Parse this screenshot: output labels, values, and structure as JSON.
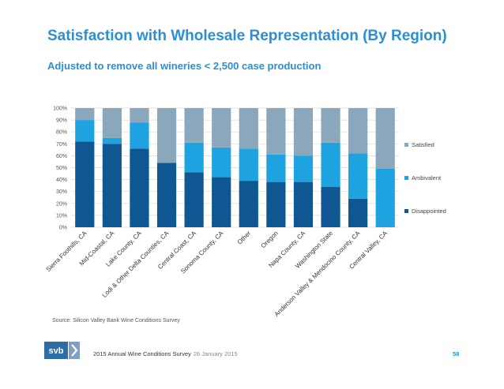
{
  "header": {
    "title": "Satisfaction with Wholesale Representation (By Region)",
    "subtitle": "Adjusted to remove all wineries < 2,500 case production"
  },
  "chart_data": {
    "type": "bar",
    "stacked": true,
    "categories": [
      "Sierra Foothills, CA",
      "Mid-Coastal, CA",
      "Lake County, CA",
      "Lodi & Other Delta Counties, CA",
      "Central Coast, CA",
      "Sonoma County, CA",
      "Other",
      "Oregon",
      "Napa County, CA",
      "Washington State",
      "Anderson Valley & Mendocino County, CA",
      "Central Valley, CA"
    ],
    "series": [
      {
        "name": "Disappointed",
        "color": "#0f5792",
        "values": [
          72,
          70,
          66,
          54,
          46,
          42,
          39,
          38,
          38,
          34,
          24,
          0
        ]
      },
      {
        "name": "Ambivalent",
        "color": "#1fa3e0",
        "values": [
          18,
          5,
          22,
          0,
          25,
          25,
          27,
          23,
          22,
          37,
          38,
          49
        ]
      },
      {
        "name": "Satisfied",
        "color": "#8aa7bc",
        "values": [
          10,
          25,
          12,
          46,
          29,
          33,
          34,
          39,
          40,
          29,
          38,
          51
        ]
      }
    ],
    "ylim": [
      0,
      100
    ],
    "yticks": [
      "0%",
      "10%",
      "20%",
      "30%",
      "40%",
      "50%",
      "60%",
      "70%",
      "80%",
      "90%",
      "100%"
    ],
    "legend": "right",
    "legend_entries": [
      "Satisfied",
      "Ambivalent",
      "Disappointed"
    ],
    "grid": true
  },
  "source_note": "Source: Silicon Valley Bank Wine Conditions Survey",
  "footer": {
    "logo_text": "svb",
    "survey": "2015 Annual Wine Conditions Survey",
    "date": "26 January 2015",
    "page": "58"
  },
  "colors": {
    "brand_blue": "#2a8fd4",
    "logo_blue": "#2e6ca6"
  }
}
